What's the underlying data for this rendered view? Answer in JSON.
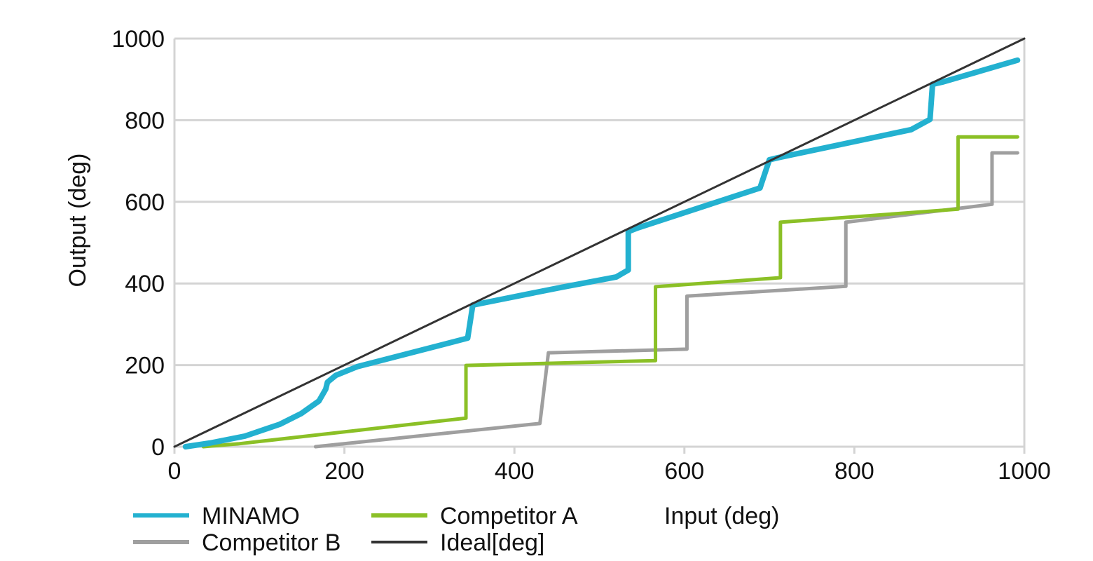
{
  "chart_data": {
    "type": "line",
    "title": "",
    "xlabel": "Input (deg)",
    "ylabel": "Output (deg)",
    "xlim": [
      0,
      1000
    ],
    "ylim": [
      0,
      1000
    ],
    "xticks": [
      0,
      200,
      400,
      600,
      800,
      1000
    ],
    "yticks": [
      0,
      200,
      400,
      600,
      800,
      1000
    ],
    "grid": "horizontal",
    "legend_position": "bottom",
    "series": [
      {
        "name": "MINAMO",
        "color": "#23b1d0",
        "points": [
          [
            13,
            0
          ],
          [
            42,
            9
          ],
          [
            83,
            26
          ],
          [
            124,
            55
          ],
          [
            149,
            81
          ],
          [
            170,
            112
          ],
          [
            178,
            141
          ],
          [
            180,
            158
          ],
          [
            190,
            175
          ],
          [
            215,
            196
          ],
          [
            345,
            266
          ],
          [
            351,
            347
          ],
          [
            363,
            352
          ],
          [
            454,
            390
          ],
          [
            520,
            416
          ],
          [
            534,
            433
          ],
          [
            534,
            527
          ],
          [
            545,
            536
          ],
          [
            689,
            634
          ],
          [
            700,
            703
          ],
          [
            710,
            708
          ],
          [
            867,
            777
          ],
          [
            889,
            802
          ],
          [
            892,
            888
          ],
          [
            903,
            893
          ],
          [
            992,
            947
          ]
        ]
      },
      {
        "name": "Competitor A",
        "color": "#8bc026",
        "points": [
          [
            34,
            0
          ],
          [
            75,
            7
          ],
          [
            343,
            70
          ],
          [
            343,
            199
          ],
          [
            566,
            211
          ],
          [
            566,
            392
          ],
          [
            713,
            414
          ],
          [
            713,
            550
          ],
          [
            922,
            582
          ],
          [
            922,
            759
          ],
          [
            992,
            759
          ]
        ]
      },
      {
        "name": "Competitor B",
        "color": "#9f9f9f",
        "points": [
          [
            166,
            0
          ],
          [
            430,
            57
          ],
          [
            440,
            230
          ],
          [
            603,
            239
          ],
          [
            603,
            369
          ],
          [
            790,
            393
          ],
          [
            790,
            550
          ],
          [
            962,
            594
          ],
          [
            962,
            720
          ],
          [
            992,
            720
          ]
        ]
      },
      {
        "name": "Ideal[deg]",
        "color": "#333333",
        "points": [
          [
            0,
            0
          ],
          [
            1000,
            1000
          ]
        ]
      }
    ]
  }
}
